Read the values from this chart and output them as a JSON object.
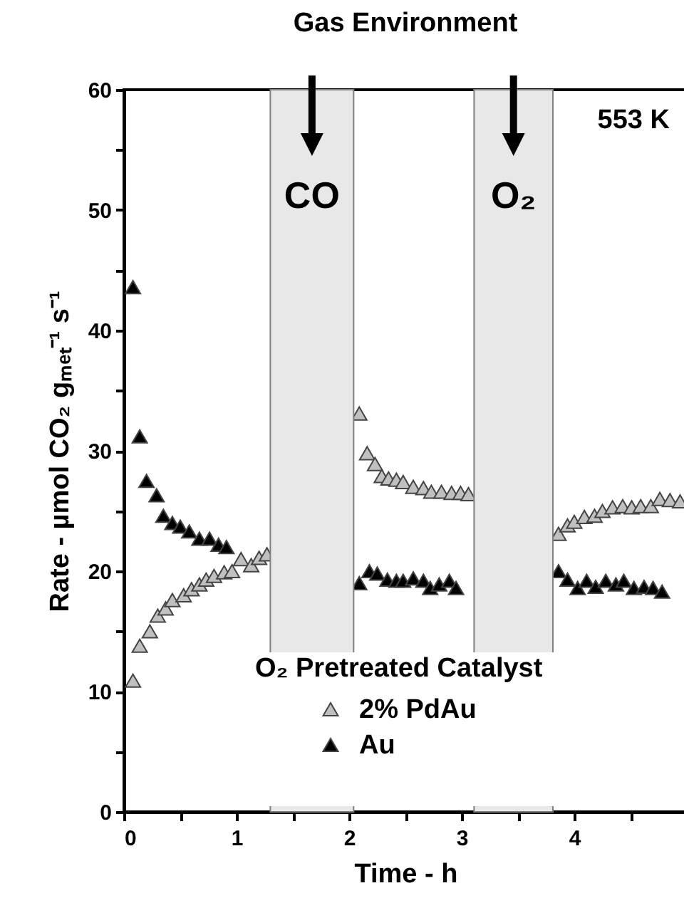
{
  "chart_data": {
    "type": "scatter",
    "title": "Gas Environment",
    "xlabel": "Time - h",
    "ylabel": "Rate - µmol CO₂ gₘₑₜ⁻¹ s⁻¹",
    "legend_title": "O₂ Pretreated Catalyst",
    "annotations": [
      "553 K"
    ],
    "xlim": [
      0,
      5
    ],
    "xticks": [
      0,
      {
        "value": 0.5,
        "label": null
      },
      1,
      {
        "value": 1.5,
        "label": null
      },
      2,
      {
        "value": 2.5,
        "label": null
      },
      3,
      {
        "value": 3.5,
        "label": null
      },
      4,
      {
        "value": 4.5,
        "label": null
      }
    ],
    "ylim": [
      0,
      60
    ],
    "yticks": [
      0,
      {
        "value": 5,
        "label": null
      },
      10,
      {
        "value": 15,
        "label": null
      },
      20,
      {
        "value": 25,
        "label": null
      },
      30,
      {
        "value": 35,
        "label": null
      },
      40,
      {
        "value": 45,
        "label": null
      },
      50,
      {
        "value": 55,
        "label": null
      },
      60
    ],
    "marker": "triangle",
    "legend": "bottom",
    "bands": [
      {
        "axis": "x",
        "from": 1.3,
        "to": 2.04,
        "label": "CO",
        "color": "#e8e8e8"
      },
      {
        "axis": "x",
        "from": 3.11,
        "to": 3.81,
        "label": "O₂",
        "color": "#e8e8e8"
      }
    ],
    "series": [
      {
        "name": "2% PdAu",
        "color": "#c0c0c0",
        "x": [
          0.08,
          0.14,
          0.23,
          0.3,
          0.37,
          0.43,
          0.53,
          0.6,
          0.67,
          0.73,
          0.8,
          0.89,
          0.96,
          1.04,
          1.13,
          1.2,
          1.27,
          2.09,
          2.16,
          2.23,
          2.29,
          2.35,
          2.42,
          2.48,
          2.57,
          2.66,
          2.73,
          2.82,
          2.91,
          2.99,
          3.06,
          3.86,
          3.94,
          4.0,
          4.09,
          4.18,
          4.25,
          4.34,
          4.43,
          4.51,
          4.59,
          4.68,
          4.76,
          4.85,
          4.94
        ],
        "values": [
          10.9,
          13.8,
          15.0,
          16.3,
          16.9,
          17.6,
          18.0,
          18.5,
          18.9,
          19.3,
          19.6,
          19.9,
          20.0,
          21.0,
          20.5,
          21.1,
          21.4,
          33.1,
          29.8,
          28.9,
          27.9,
          27.7,
          27.6,
          27.4,
          27.0,
          26.9,
          26.6,
          26.6,
          26.5,
          26.5,
          26.4,
          23.1,
          23.8,
          24.1,
          24.5,
          24.6,
          25.0,
          25.3,
          25.4,
          25.3,
          25.4,
          25.4,
          26.0,
          25.9,
          25.8
        ]
      },
      {
        "name": "Au",
        "color": "#000000",
        "x": [
          0.08,
          0.14,
          0.2,
          0.29,
          0.35,
          0.43,
          0.5,
          0.58,
          0.67,
          0.76,
          0.84,
          0.91,
          2.09,
          2.18,
          2.25,
          2.34,
          2.42,
          2.48,
          2.57,
          2.66,
          2.72,
          2.8,
          2.89,
          2.95,
          3.86,
          3.94,
          4.03,
          4.11,
          4.19,
          4.28,
          4.37,
          4.44,
          4.53,
          4.62,
          4.7,
          4.78
        ],
        "values": [
          43.6,
          31.2,
          27.5,
          26.3,
          24.6,
          24.0,
          23.7,
          23.3,
          22.7,
          22.7,
          22.2,
          22.0,
          19.0,
          20.0,
          19.8,
          19.3,
          19.2,
          19.2,
          19.4,
          19.2,
          18.6,
          18.9,
          19.2,
          18.6,
          20.0,
          19.3,
          18.6,
          19.2,
          18.7,
          19.2,
          18.9,
          19.2,
          18.6,
          18.7,
          18.6,
          18.3
        ]
      }
    ]
  }
}
